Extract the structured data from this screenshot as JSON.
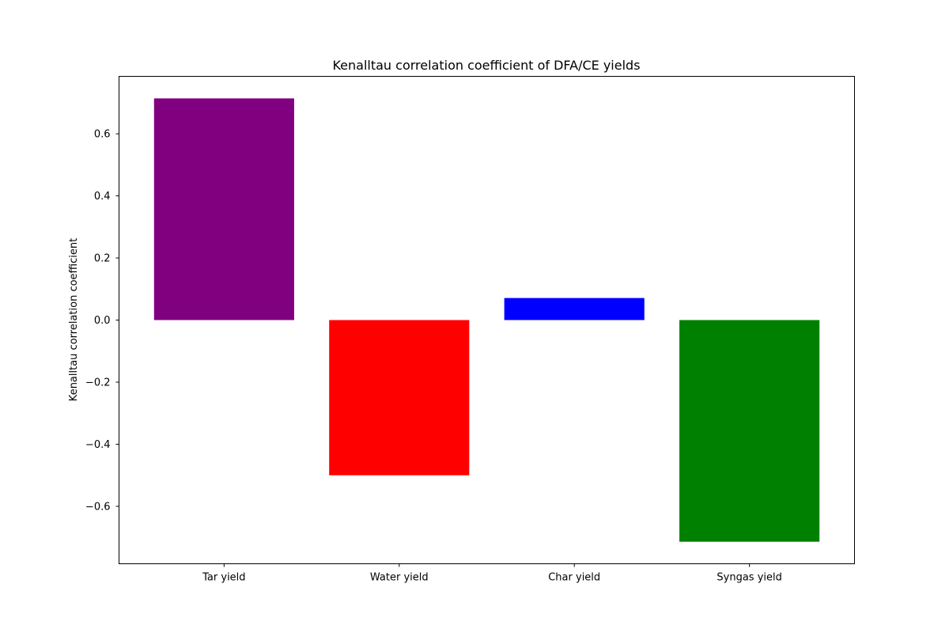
{
  "chart_data": {
    "type": "bar",
    "title": "Kenalltau correlation coefficient of DFA/CE yields",
    "xlabel": "",
    "ylabel": "Kenalltau correlation coefficient",
    "categories": [
      "Tar yield",
      "Water yield",
      "Char yield",
      "Syngas yield"
    ],
    "values": [
      0.714,
      -0.5,
      0.071,
      -0.714
    ],
    "colors": [
      "#800080",
      "#ff0000",
      "#0000ff",
      "#008000"
    ],
    "ylim": [
      -0.785,
      0.785
    ],
    "yticks": [
      -0.6,
      -0.4,
      -0.2,
      0.0,
      0.2,
      0.4,
      0.6
    ],
    "ytick_labels": [
      "−0.6",
      "−0.4",
      "−0.2",
      "0.0",
      "0.2",
      "0.4",
      "0.6"
    ],
    "grid": false,
    "legend": "none"
  }
}
